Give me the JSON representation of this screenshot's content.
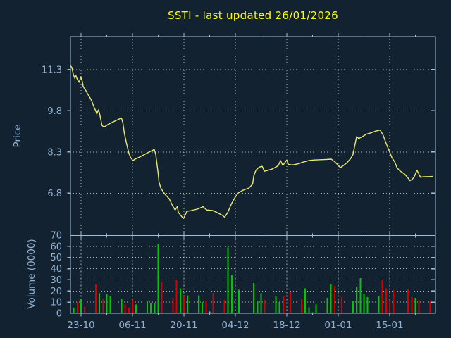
{
  "title": "SSTI - last updated 26/01/2026",
  "colors": {
    "background": "#132230",
    "frame": "#9fbeda",
    "label": "#8fb2d4",
    "grid": "#c9ced4",
    "title": "#ffff00",
    "price_line": "#ece873",
    "vol_up": "#00c800",
    "vol_down": "#d40000",
    "vol_flat": "#8fb2d4"
  },
  "chart_data": [
    {
      "type": "line",
      "panel": "price",
      "ylabel": "Price",
      "x_unit": "trading days relative to the 23-10 tick",
      "xlim": [
        -2.88,
        96.47
      ],
      "ylim": [
        5.26,
        12.5
      ],
      "grid": true,
      "legend": "none",
      "yticks": [
        {
          "v": 6.8,
          "label": "6.8"
        },
        {
          "v": 8.3,
          "label": "8.3"
        },
        {
          "v": 9.8,
          "label": "9.8"
        },
        {
          "v": 11.3,
          "label": "11.3"
        }
      ],
      "xticks": [
        {
          "d": 0,
          "label": "23-10"
        },
        {
          "d": 14,
          "label": "06-11"
        },
        {
          "d": 28,
          "label": "20-11"
        },
        {
          "d": 42,
          "label": "04-12"
        },
        {
          "d": 56,
          "label": "18-12"
        },
        {
          "d": 70,
          "label": "01-01"
        },
        {
          "d": 84,
          "label": "15-01"
        }
      ],
      "series": [
        {
          "name": "SSTI price",
          "points": [
            [
              -2.9,
              11.44
            ],
            [
              -2.5,
              11.38
            ],
            [
              -2.1,
              11.12
            ],
            [
              -1.7,
              10.98
            ],
            [
              -1.4,
              11.08
            ],
            [
              -1.0,
              10.94
            ],
            [
              -0.5,
              10.84
            ],
            [
              -0.1,
              11.03
            ],
            [
              0.2,
              10.95
            ],
            [
              0.6,
              10.68
            ],
            [
              1.3,
              10.54
            ],
            [
              1.9,
              10.39
            ],
            [
              2.6,
              10.24
            ],
            [
              3.1,
              10.09
            ],
            [
              3.5,
              9.94
            ],
            [
              4.0,
              9.8
            ],
            [
              4.3,
              9.68
            ],
            [
              4.7,
              9.83
            ],
            [
              5.0,
              9.73
            ],
            [
              5.3,
              9.54
            ],
            [
              5.7,
              9.27
            ],
            [
              6.1,
              9.22
            ],
            [
              6.5,
              9.23
            ],
            [
              7.3,
              9.3
            ],
            [
              8.6,
              9.39
            ],
            [
              9.9,
              9.47
            ],
            [
              11.0,
              9.54
            ],
            [
              11.4,
              9.34
            ],
            [
              11.8,
              8.98
            ],
            [
              12.3,
              8.66
            ],
            [
              12.7,
              8.44
            ],
            [
              13.0,
              8.27
            ],
            [
              13.4,
              8.12
            ],
            [
              14.1,
              7.99
            ],
            [
              14.7,
              8.04
            ],
            [
              16.0,
              8.12
            ],
            [
              17.3,
              8.21
            ],
            [
              18.5,
              8.3
            ],
            [
              19.5,
              8.36
            ],
            [
              19.9,
              8.4
            ],
            [
              20.3,
              8.23
            ],
            [
              20.6,
              7.93
            ],
            [
              21.0,
              7.51
            ],
            [
              21.2,
              7.21
            ],
            [
              21.7,
              6.99
            ],
            [
              22.4,
              6.84
            ],
            [
              23.0,
              6.74
            ],
            [
              24.0,
              6.6
            ],
            [
              24.9,
              6.35
            ],
            [
              25.6,
              6.19
            ],
            [
              26.2,
              6.31
            ],
            [
              26.5,
              6.1
            ],
            [
              27.4,
              5.95
            ],
            [
              27.9,
              5.88
            ],
            [
              28.8,
              6.14
            ],
            [
              30.0,
              6.17
            ],
            [
              31.6,
              6.22
            ],
            [
              32.9,
              6.29
            ],
            [
              33.2,
              6.31
            ],
            [
              34.2,
              6.19
            ],
            [
              35.8,
              6.17
            ],
            [
              37.0,
              6.1
            ],
            [
              38.4,
              6.0
            ],
            [
              39.1,
              5.93
            ],
            [
              40.0,
              6.12
            ],
            [
              40.9,
              6.41
            ],
            [
              41.9,
              6.65
            ],
            [
              42.8,
              6.81
            ],
            [
              44.1,
              6.91
            ],
            [
              45.7,
              6.99
            ],
            [
              46.7,
              7.13
            ],
            [
              47.0,
              7.43
            ],
            [
              47.6,
              7.64
            ],
            [
              48.5,
              7.75
            ],
            [
              49.3,
              7.78
            ],
            [
              49.9,
              7.6
            ],
            [
              50.8,
              7.63
            ],
            [
              52.0,
              7.68
            ],
            [
              53.1,
              7.76
            ],
            [
              53.7,
              7.81
            ],
            [
              54.3,
              7.99
            ],
            [
              54.9,
              7.81
            ],
            [
              55.4,
              7.9
            ],
            [
              56.0,
              8.01
            ],
            [
              56.4,
              7.85
            ],
            [
              57.2,
              7.83
            ],
            [
              58.1,
              7.84
            ],
            [
              59.3,
              7.88
            ],
            [
              60.4,
              7.93
            ],
            [
              62.0,
              7.99
            ],
            [
              63.5,
              8.01
            ],
            [
              65.2,
              8.02
            ],
            [
              66.9,
              8.03
            ],
            [
              68.1,
              8.04
            ],
            [
              69.0,
              7.95
            ],
            [
              70.0,
              7.82
            ],
            [
              70.6,
              7.73
            ],
            [
              71.4,
              7.81
            ],
            [
              72.3,
              7.9
            ],
            [
              73.3,
              8.05
            ],
            [
              74.0,
              8.2
            ],
            [
              74.6,
              8.6
            ],
            [
              75.0,
              8.86
            ],
            [
              75.6,
              8.79
            ],
            [
              76.3,
              8.84
            ],
            [
              77.7,
              8.95
            ],
            [
              79.0,
              9.0
            ],
            [
              80.2,
              9.06
            ],
            [
              81.4,
              9.1
            ],
            [
              82.2,
              8.92
            ],
            [
              82.8,
              8.7
            ],
            [
              83.4,
              8.49
            ],
            [
              84.1,
              8.27
            ],
            [
              84.6,
              8.1
            ],
            [
              85.4,
              7.93
            ],
            [
              86.0,
              7.73
            ],
            [
              86.7,
              7.62
            ],
            [
              87.5,
              7.55
            ],
            [
              88.2,
              7.48
            ],
            [
              89.0,
              7.35
            ],
            [
              89.5,
              7.26
            ],
            [
              90.1,
              7.3
            ],
            [
              90.7,
              7.4
            ],
            [
              91.4,
              7.64
            ],
            [
              92.4,
              7.38
            ],
            [
              93.2,
              7.4
            ],
            [
              94.2,
              7.4
            ],
            [
              95.6,
              7.41
            ]
          ]
        }
      ]
    },
    {
      "type": "bar",
      "panel": "volume",
      "ylabel": "Volume (0000)",
      "x_unit": "trading days relative to the 23-10 tick",
      "xlim": [
        -2.88,
        96.47
      ],
      "ylim": [
        0,
        69.7
      ],
      "grid": true,
      "legend": "none",
      "yticks": [
        {
          "v": 0,
          "label": "0"
        },
        {
          "v": 10,
          "label": "10"
        },
        {
          "v": 20,
          "label": "20"
        },
        {
          "v": 30,
          "label": "30"
        },
        {
          "v": 40,
          "label": "40"
        },
        {
          "v": 50,
          "label": "50"
        },
        {
          "v": 60,
          "label": "60"
        },
        {
          "v": 70,
          "label": "70"
        }
      ],
      "xticks": [
        {
          "d": 0,
          "label": "23-10"
        },
        {
          "d": 14,
          "label": "06-11"
        },
        {
          "d": 28,
          "label": "20-11"
        },
        {
          "d": 42,
          "label": "04-12"
        },
        {
          "d": 56,
          "label": "18-12"
        },
        {
          "d": 70,
          "label": "01-01"
        },
        {
          "d": 84,
          "label": "15-01"
        }
      ],
      "bar_color_legend": {
        "g": "up day (green)",
        "r": "down day (red)",
        "b": "flat day (blue)"
      },
      "bars": [
        [
          -2,
          5,
          "g"
        ],
        [
          -1,
          10,
          "r"
        ],
        [
          0,
          12.5,
          "g"
        ],
        [
          1,
          6,
          "r"
        ],
        [
          4,
          26,
          "r"
        ],
        [
          5,
          18,
          "g"
        ],
        [
          6,
          13,
          "r"
        ],
        [
          7,
          17,
          "g"
        ],
        [
          8,
          15,
          "g"
        ],
        [
          11,
          12.5,
          "g"
        ],
        [
          12,
          8,
          "r"
        ],
        [
          13,
          5,
          "r"
        ],
        [
          14,
          12,
          "r"
        ],
        [
          15,
          8,
          "g"
        ],
        [
          18,
          11.5,
          "g"
        ],
        [
          19,
          9,
          "g"
        ],
        [
          20,
          9,
          "g"
        ],
        [
          21,
          62,
          "g"
        ],
        [
          22,
          28,
          "r"
        ],
        [
          25,
          14,
          "r"
        ],
        [
          26,
          30,
          "r"
        ],
        [
          27,
          22.5,
          "g"
        ],
        [
          28,
          15,
          "r"
        ],
        [
          29,
          16,
          "g"
        ],
        [
          32,
          16,
          "g"
        ],
        [
          33,
          10,
          "g"
        ],
        [
          34,
          11,
          "r"
        ],
        [
          35,
          1.5,
          "b"
        ],
        [
          36,
          18,
          "r"
        ],
        [
          39,
          12,
          "r"
        ],
        [
          40,
          59,
          "g"
        ],
        [
          41,
          34,
          "g"
        ],
        [
          43,
          21,
          "g"
        ],
        [
          47,
          27,
          "g"
        ],
        [
          48,
          11.5,
          "g"
        ],
        [
          49,
          18,
          "g"
        ],
        [
          50,
          12,
          "r"
        ],
        [
          53,
          15,
          "g"
        ],
        [
          54,
          10,
          "g"
        ],
        [
          55,
          15.5,
          "r"
        ],
        [
          57,
          19,
          "r"
        ],
        [
          60,
          13,
          "r"
        ],
        [
          61,
          22.5,
          "g"
        ],
        [
          62,
          5.5,
          "g"
        ],
        [
          63,
          1,
          "g"
        ],
        [
          64,
          8,
          "g"
        ],
        [
          67,
          14,
          "g"
        ],
        [
          68,
          26,
          "g"
        ],
        [
          69,
          24.5,
          "r"
        ],
        [
          71,
          14.5,
          "r"
        ],
        [
          74,
          11,
          "g"
        ],
        [
          75,
          24,
          "g"
        ],
        [
          76,
          31.5,
          "g"
        ],
        [
          77,
          17.5,
          "g"
        ],
        [
          78,
          14.5,
          "g"
        ],
        [
          81,
          15,
          "g"
        ],
        [
          82,
          29.5,
          "r"
        ],
        [
          83,
          22.5,
          "r"
        ],
        [
          84,
          11.5,
          "r"
        ],
        [
          85,
          21,
          "r"
        ],
        [
          89,
          21.5,
          "r"
        ],
        [
          90,
          14.5,
          "r"
        ],
        [
          91,
          14,
          "g"
        ],
        [
          92,
          12,
          "r"
        ],
        [
          95,
          11,
          "r"
        ]
      ]
    }
  ]
}
